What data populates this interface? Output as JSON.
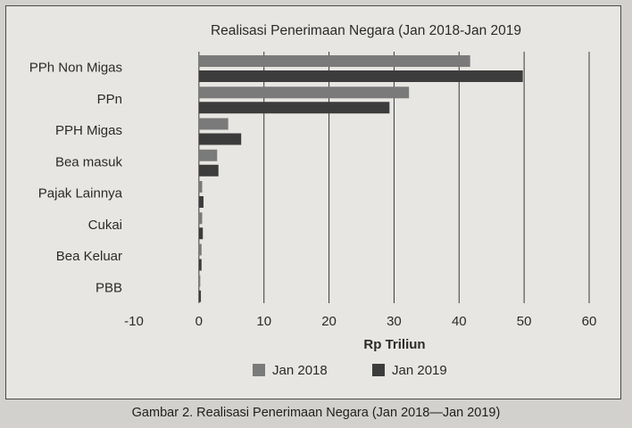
{
  "caption": "Gambar 2. Realisasi Penerimaan Negara (Jan 2018—Jan 2019)",
  "chart_data": {
    "type": "bar",
    "orientation": "horizontal",
    "title": "Realisasi Penerimaan Negara (Jan 2018-Jan 2019",
    "xlabel": "Rp Triliun",
    "ylabel": "",
    "xlim": [
      -10,
      60
    ],
    "xticks": [
      -10,
      0,
      10,
      20,
      30,
      40,
      50,
      60
    ],
    "grid": "vertical",
    "legend": "bottom",
    "categories": [
      "PPh Non Migas",
      "PPn",
      "PPH Migas",
      "Bea masuk",
      "Pajak Lainnya",
      "Cukai",
      "Bea Keluar",
      "PBB"
    ],
    "series": [
      {
        "name": "Jan 2018",
        "color": "#7a7a7a",
        "values": [
          41.7,
          32.3,
          4.5,
          2.8,
          0.5,
          0.5,
          0.4,
          0.2
        ]
      },
      {
        "name": "Jan 2019",
        "color": "#3c3c3c",
        "values": [
          49.8,
          29.3,
          6.5,
          3.0,
          0.7,
          0.6,
          0.4,
          0.3
        ]
      }
    ]
  }
}
